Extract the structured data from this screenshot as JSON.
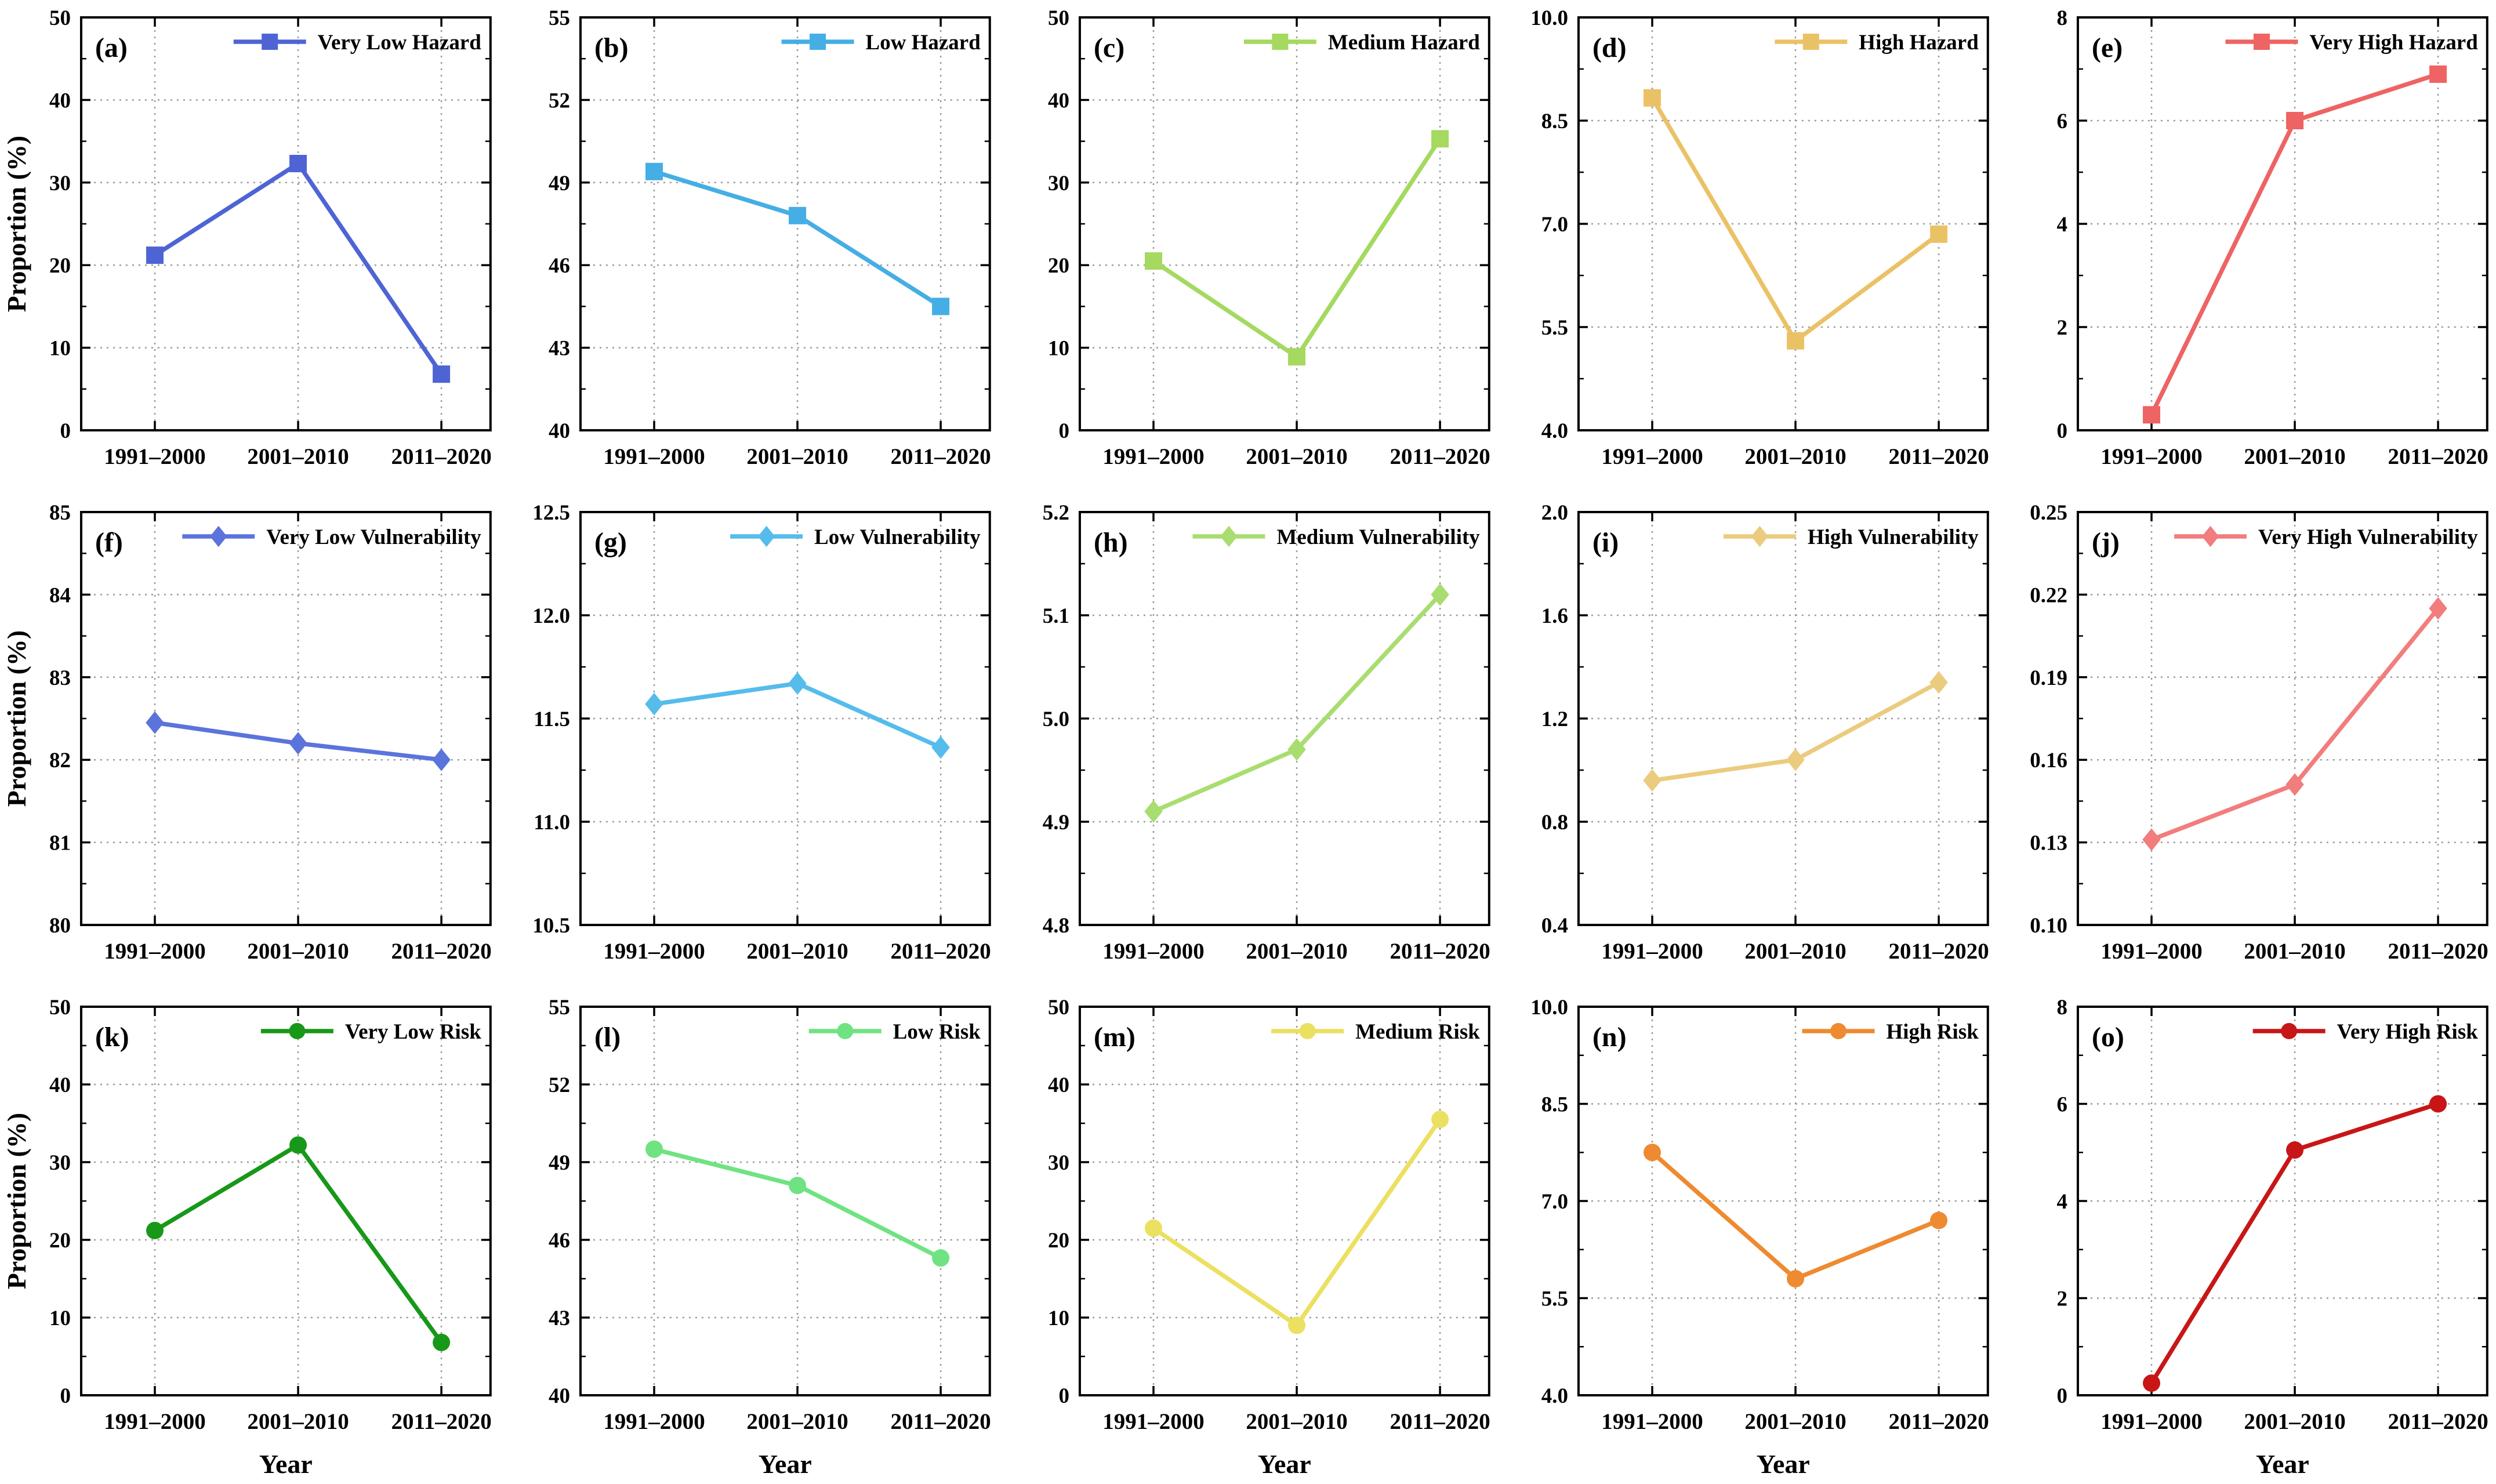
{
  "figure": {
    "ylabel": "Proportion (%)",
    "xlabel": "Year",
    "categories": [
      "1991–2000",
      "2001–2010",
      "2011–2020"
    ],
    "grid_color": "#9a9a9a",
    "axis_color": "#000000"
  },
  "chart_data": [
    {
      "type": "line",
      "panel_label": "(a)",
      "legend": "Very Low Hazard",
      "marker": "square",
      "color": "#4F64D4",
      "categories": [
        "1991–2000",
        "2001–2010",
        "2011–2020"
      ],
      "values": [
        21.2,
        32.3,
        6.8
      ],
      "ylim": [
        0,
        50
      ],
      "yticks": [
        0,
        10,
        20,
        30,
        40,
        50
      ],
      "ytick_labels": [
        "0",
        "10",
        "20",
        "30",
        "40",
        "50"
      ],
      "grid": true,
      "legend_position": "top-right"
    },
    {
      "type": "line",
      "panel_label": "(b)",
      "legend": "Low Hazard",
      "marker": "square",
      "color": "#45AEE4",
      "categories": [
        "1991–2000",
        "2001–2010",
        "2011–2020"
      ],
      "values": [
        49.4,
        47.8,
        44.5
      ],
      "ylim": [
        40,
        55
      ],
      "yticks": [
        40,
        43,
        46,
        49,
        52,
        55
      ],
      "ytick_labels": [
        "40",
        "43",
        "46",
        "49",
        "52",
        "55"
      ],
      "grid": true,
      "legend_position": "top-right"
    },
    {
      "type": "line",
      "panel_label": "(c)",
      "legend": "Medium Hazard",
      "marker": "square",
      "color": "#A5D95F",
      "categories": [
        "1991–2000",
        "2001–2010",
        "2011–2020"
      ],
      "values": [
        20.5,
        8.9,
        35.3
      ],
      "ylim": [
        0,
        50
      ],
      "yticks": [
        0,
        10,
        20,
        30,
        40,
        50
      ],
      "ytick_labels": [
        "0",
        "10",
        "20",
        "30",
        "40",
        "50"
      ],
      "grid": true,
      "legend_position": "top-right"
    },
    {
      "type": "line",
      "panel_label": "(d)",
      "legend": "High Hazard",
      "marker": "square",
      "color": "#EAC266",
      "categories": [
        "1991–2000",
        "2001–2010",
        "2011–2020"
      ],
      "values": [
        8.83,
        5.3,
        6.85
      ],
      "ylim": [
        4,
        10
      ],
      "yticks": [
        4,
        5.5,
        7,
        8.5,
        10
      ],
      "ytick_labels": [
        "4.0",
        "5.5",
        "7.0",
        "8.5",
        "10.0"
      ],
      "grid": true,
      "legend_position": "top-right"
    },
    {
      "type": "line",
      "panel_label": "(e)",
      "legend": "Very High Hazard",
      "marker": "square",
      "color": "#EE6363",
      "categories": [
        "1991–2000",
        "2001–2010",
        "2011–2020"
      ],
      "values": [
        0.3,
        6.0,
        6.9
      ],
      "ylim": [
        0,
        8
      ],
      "yticks": [
        0,
        2,
        4,
        6,
        8
      ],
      "ytick_labels": [
        "0",
        "2",
        "4",
        "6",
        "8"
      ],
      "grid": true,
      "legend_position": "top-right"
    },
    {
      "type": "line",
      "panel_label": "(f)",
      "legend": "Very Low Vulnerability",
      "marker": "diamond",
      "color": "#5B74DC",
      "categories": [
        "1991–2000",
        "2001–2010",
        "2011–2020"
      ],
      "values": [
        82.45,
        82.2,
        82.0
      ],
      "ylim": [
        80,
        85
      ],
      "yticks": [
        80,
        81,
        82,
        83,
        84,
        85
      ],
      "ytick_labels": [
        "80",
        "81",
        "82",
        "83",
        "84",
        "85"
      ],
      "grid": true,
      "legend_position": "top-right"
    },
    {
      "type": "line",
      "panel_label": "(g)",
      "legend": "Low Vulnerability",
      "marker": "diamond",
      "color": "#55BCEC",
      "categories": [
        "1991–2000",
        "2001–2010",
        "2011–2020"
      ],
      "values": [
        11.57,
        11.67,
        11.36
      ],
      "ylim": [
        10.5,
        12.5
      ],
      "yticks": [
        10.5,
        11,
        11.5,
        12,
        12.5
      ],
      "ytick_labels": [
        "10.5",
        "11.0",
        "11.5",
        "12.0",
        "12.5"
      ],
      "grid": true,
      "legend_position": "top-right"
    },
    {
      "type": "line",
      "panel_label": "(h)",
      "legend": "Medium Vulnerability",
      "marker": "diamond",
      "color": "#A9DD70",
      "categories": [
        "1991–2000",
        "2001–2010",
        "2011–2020"
      ],
      "values": [
        4.91,
        4.97,
        5.12
      ],
      "ylim": [
        4.8,
        5.2
      ],
      "yticks": [
        4.8,
        4.9,
        5,
        5.1,
        5.2
      ],
      "ytick_labels": [
        "4.8",
        "4.9",
        "5.0",
        "5.1",
        "5.2"
      ],
      "grid": true,
      "legend_position": "top-right"
    },
    {
      "type": "line",
      "panel_label": "(i)",
      "legend": "High Vulnerability",
      "marker": "diamond",
      "color": "#EBCB7E",
      "categories": [
        "1991–2000",
        "2001–2010",
        "2011–2020"
      ],
      "values": [
        0.96,
        1.04,
        1.34
      ],
      "ylim": [
        0.4,
        2.0
      ],
      "yticks": [
        0.4,
        0.8,
        1.2,
        1.6,
        2.0
      ],
      "ytick_labels": [
        "0.4",
        "0.8",
        "1.2",
        "1.6",
        "2.0"
      ],
      "grid": true,
      "legend_position": "top-right"
    },
    {
      "type": "line",
      "panel_label": "(j)",
      "legend": "Very High Vulnerability",
      "marker": "diamond",
      "color": "#F27D7D",
      "categories": [
        "1991–2000",
        "2001–2010",
        "2011–2020"
      ],
      "values": [
        0.131,
        0.151,
        0.215
      ],
      "ylim": [
        0.1,
        0.25
      ],
      "yticks": [
        0.1,
        0.13,
        0.16,
        0.19,
        0.22,
        0.25
      ],
      "ytick_labels": [
        "0.10",
        "0.13",
        "0.16",
        "0.19",
        "0.22",
        "0.25"
      ],
      "grid": true,
      "legend_position": "top-right"
    },
    {
      "type": "line",
      "panel_label": "(k)",
      "legend": "Very Low Risk",
      "marker": "circle",
      "color": "#189818",
      "categories": [
        "1991–2000",
        "2001–2010",
        "2011–2020"
      ],
      "values": [
        21.2,
        32.2,
        6.8
      ],
      "ylim": [
        0,
        50
      ],
      "yticks": [
        0,
        10,
        20,
        30,
        40,
        50
      ],
      "ytick_labels": [
        "0",
        "10",
        "20",
        "30",
        "40",
        "50"
      ],
      "grid": true,
      "legend_position": "top-right"
    },
    {
      "type": "line",
      "panel_label": "(l)",
      "legend": "Low Risk",
      "marker": "circle",
      "color": "#6FE381",
      "categories": [
        "1991–2000",
        "2001–2010",
        "2011–2020"
      ],
      "values": [
        49.5,
        48.1,
        45.3
      ],
      "ylim": [
        40,
        55
      ],
      "yticks": [
        40,
        43,
        46,
        49,
        52,
        55
      ],
      "ytick_labels": [
        "40",
        "43",
        "46",
        "49",
        "52",
        "55"
      ],
      "grid": true,
      "legend_position": "top-right"
    },
    {
      "type": "line",
      "panel_label": "(m)",
      "legend": "Medium Risk",
      "marker": "circle",
      "color": "#EBE060",
      "categories": [
        "1991–2000",
        "2001–2010",
        "2011–2020"
      ],
      "values": [
        21.5,
        9.0,
        35.5
      ],
      "ylim": [
        0,
        50
      ],
      "yticks": [
        0,
        10,
        20,
        30,
        40,
        50
      ],
      "ytick_labels": [
        "0",
        "10",
        "20",
        "30",
        "40",
        "50"
      ],
      "grid": true,
      "legend_position": "top-right"
    },
    {
      "type": "line",
      "panel_label": "(n)",
      "legend": "High Risk",
      "marker": "circle",
      "color": "#EE8A30",
      "categories": [
        "1991–2000",
        "2001–2010",
        "2011–2020"
      ],
      "values": [
        7.75,
        5.8,
        6.7
      ],
      "ylim": [
        4,
        10
      ],
      "yticks": [
        4,
        5.5,
        7,
        8.5,
        10
      ],
      "ytick_labels": [
        "4.0",
        "5.5",
        "7.0",
        "8.5",
        "10.0"
      ],
      "grid": true,
      "legend_position": "top-right"
    },
    {
      "type": "line",
      "panel_label": "(o)",
      "legend": "Very High Risk",
      "marker": "circle",
      "color": "#C81616",
      "categories": [
        "1991–2000",
        "2001–2010",
        "2011–2020"
      ],
      "values": [
        0.25,
        5.05,
        6.0
      ],
      "ylim": [
        0,
        8
      ],
      "yticks": [
        0,
        2,
        4,
        6,
        8
      ],
      "ytick_labels": [
        "0",
        "2",
        "4",
        "6",
        "8"
      ],
      "grid": true,
      "legend_position": "top-right"
    }
  ]
}
